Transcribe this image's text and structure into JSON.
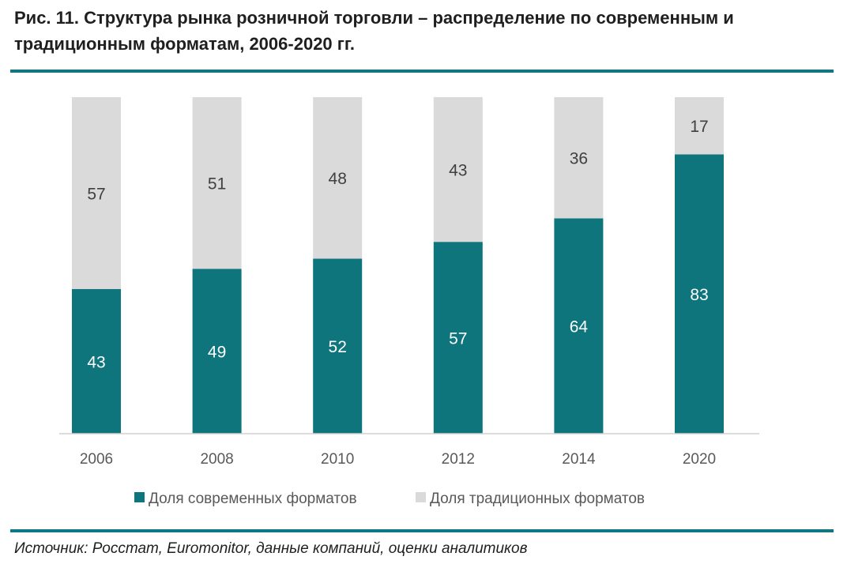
{
  "title": "Рис. 11. Структура рынка розничной торговли – распределение по современным и традиционным форматам, 2006-2020 гг.",
  "source": "Источник: Росстат, Euromonitor, данные компаний, оценки аналитиков",
  "chart_data": {
    "type": "bar",
    "stacked": true,
    "categories": [
      "2006",
      "2008",
      "2010",
      "2012",
      "2014",
      "2020"
    ],
    "series": [
      {
        "name": "Доля современных форматов",
        "color": "#0e757c",
        "label_color": "#ffffff",
        "values": [
          43,
          49,
          52,
          57,
          64,
          83
        ]
      },
      {
        "name": "Доля традиционных форматов",
        "color": "#dadada",
        "label_color": "#404040",
        "values": [
          57,
          51,
          48,
          43,
          36,
          17
        ]
      }
    ],
    "ylim": [
      0,
      100
    ],
    "legend_position": "bottom",
    "grid": false
  }
}
